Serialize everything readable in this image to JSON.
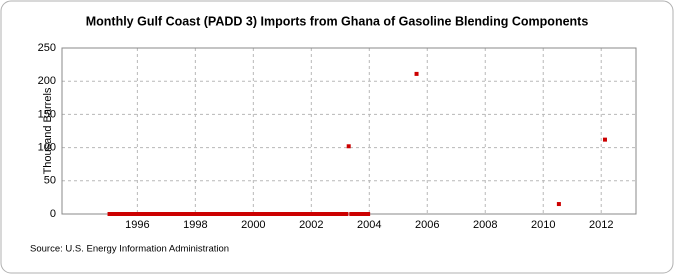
{
  "chart_data": {
    "type": "scatter",
    "title": "Monthly Gulf Coast (PADD 3) Imports from Ghana of Gasoline Blending Components",
    "y_label": "Thousand Barrels",
    "source": "Source: U.S. Energy Information Administration",
    "color": "#cc0000",
    "grid": true,
    "xlim": [
      1993.4,
      2013.2
    ],
    "xticks": [
      1996,
      1998,
      2000,
      2002,
      2004,
      2006,
      2008,
      2010,
      2012
    ],
    "ylim": [
      0,
      250
    ],
    "yticks": [
      0,
      50,
      100,
      150,
      200,
      250
    ],
    "x": [
      1995.04,
      1995.13,
      1995.21,
      1995.29,
      1995.38,
      1995.46,
      1995.54,
      1995.63,
      1995.71,
      1995.79,
      1995.88,
      1995.96,
      1996.04,
      1996.13,
      1996.21,
      1996.29,
      1996.38,
      1996.46,
      1996.54,
      1996.63,
      1996.71,
      1996.79,
      1996.88,
      1996.96,
      1997.04,
      1997.13,
      1997.21,
      1997.29,
      1997.38,
      1997.46,
      1997.54,
      1997.63,
      1997.71,
      1997.79,
      1997.88,
      1997.96,
      1998.04,
      1998.13,
      1998.21,
      1998.29,
      1998.38,
      1998.46,
      1998.54,
      1998.63,
      1998.71,
      1998.79,
      1998.88,
      1998.96,
      1999.04,
      1999.13,
      1999.21,
      1999.29,
      1999.38,
      1999.46,
      1999.54,
      1999.63,
      1999.71,
      1999.79,
      1999.88,
      1999.96,
      2000.04,
      2000.13,
      2000.21,
      2000.29,
      2000.38,
      2000.46,
      2000.54,
      2000.63,
      2000.71,
      2000.79,
      2000.88,
      2000.96,
      2001.04,
      2001.13,
      2001.21,
      2001.29,
      2001.38,
      2001.46,
      2001.54,
      2001.63,
      2001.71,
      2001.79,
      2001.88,
      2001.96,
      2002.04,
      2002.13,
      2002.21,
      2002.29,
      2002.38,
      2002.46,
      2002.54,
      2002.63,
      2002.71,
      2002.79,
      2002.88,
      2002.96,
      2003.04,
      2003.13,
      2003.21,
      2003.29,
      2003.38,
      2003.46,
      2003.54,
      2003.63,
      2003.71,
      2003.79,
      2003.88,
      2003.96,
      2005.63,
      2010.54,
      2012.13
    ],
    "values": [
      0,
      0,
      0,
      0,
      0,
      0,
      0,
      0,
      0,
      0,
      0,
      0,
      0,
      0,
      0,
      0,
      0,
      0,
      0,
      0,
      0,
      0,
      0,
      0,
      0,
      0,
      0,
      0,
      0,
      0,
      0,
      0,
      0,
      0,
      0,
      0,
      0,
      0,
      0,
      0,
      0,
      0,
      0,
      0,
      0,
      0,
      0,
      0,
      0,
      0,
      0,
      0,
      0,
      0,
      0,
      0,
      0,
      0,
      0,
      0,
      0,
      0,
      0,
      0,
      0,
      0,
      0,
      0,
      0,
      0,
      0,
      0,
      0,
      0,
      0,
      0,
      0,
      0,
      0,
      0,
      0,
      0,
      0,
      0,
      0,
      0,
      0,
      0,
      0,
      0,
      0,
      0,
      0,
      0,
      0,
      0,
      0,
      0,
      0,
      102,
      0,
      0,
      0,
      0,
      0,
      0,
      0,
      0,
      211,
      15,
      112
    ]
  }
}
